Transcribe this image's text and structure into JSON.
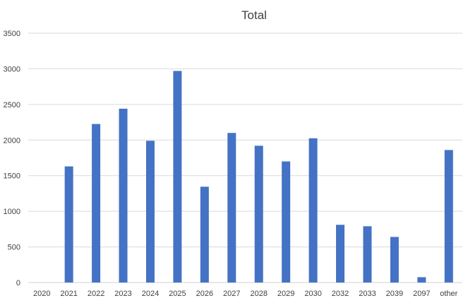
{
  "chart_data": {
    "type": "bar",
    "title": "Total",
    "xlabel": "",
    "ylabel": "",
    "categories": [
      "2020",
      "2021",
      "2022",
      "2023",
      "2024",
      "2025",
      "2026",
      "2027",
      "2028",
      "2029",
      "2030",
      "2032",
      "2033",
      "2039",
      "2097",
      "other"
    ],
    "series": [
      {
        "values": [
          0,
          1630,
          2225,
          2440,
          1990,
          2970,
          1345,
          2100,
          1920,
          1700,
          2025,
          810,
          790,
          640,
          75,
          1860
        ],
        "color": "#4472C4"
      }
    ],
    "ylim": [
      0,
      3500
    ],
    "yticks": [
      0,
      500,
      1000,
      1500,
      2000,
      2500,
      3000,
      3500
    ],
    "grid": true,
    "legend": "none"
  }
}
